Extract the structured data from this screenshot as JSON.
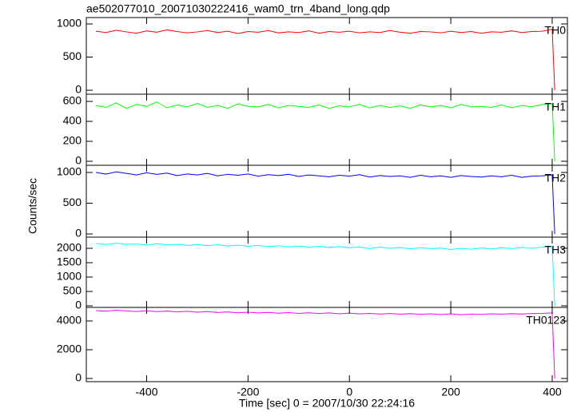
{
  "title": "ae502077010_20071030222416_wam0_trn_4band_long.qdp",
  "y_label": "Counts/sec",
  "x_label": "Time [sec] 0 = 2007/10/30 22:24:16",
  "chart_data": [
    {
      "type": "line",
      "xlim": [
        -519,
        430
      ],
      "ylim": [
        -60,
        1096
      ],
      "xticks": [
        -400,
        -200,
        0,
        200,
        400
      ],
      "yticks": [
        0,
        500,
        1000
      ],
      "x": [
        -500,
        -480,
        -460,
        -440,
        -420,
        -400,
        -380,
        -360,
        -340,
        -320,
        -300,
        -280,
        -260,
        -240,
        -220,
        -200,
        -180,
        -160,
        -140,
        -120,
        -100,
        -80,
        -60,
        -40,
        -20,
        0,
        20,
        40,
        60,
        80,
        100,
        120,
        140,
        160,
        180,
        200,
        220,
        240,
        260,
        280,
        300,
        320,
        340,
        360,
        380,
        400,
        405
      ],
      "series": [
        {
          "name": "TH0",
          "color": "#ff0000",
          "values": [
            890,
            870,
            905,
            880,
            860,
            895,
            875,
            910,
            885,
            865,
            880,
            900,
            870,
            890,
            855,
            885,
            875,
            900,
            865,
            880,
            870,
            895,
            860,
            885,
            875,
            890,
            865,
            880,
            870,
            900,
            875,
            860,
            885,
            880,
            865,
            890,
            870,
            885,
            860,
            880,
            875,
            895,
            870,
            885,
            890,
            920,
            0
          ]
        }
      ]
    },
    {
      "type": "line",
      "xlim": [
        -519,
        430
      ],
      "ylim": [
        -40,
        672
      ],
      "xticks": [
        -400,
        -200,
        0,
        200,
        400
      ],
      "yticks": [
        0,
        200,
        400,
        600
      ],
      "x": [
        -500,
        -480,
        -460,
        -440,
        -420,
        -400,
        -380,
        -360,
        -340,
        -320,
        -300,
        -280,
        -260,
        -240,
        -220,
        -200,
        -180,
        -160,
        -140,
        -120,
        -100,
        -80,
        -60,
        -40,
        -20,
        0,
        20,
        40,
        60,
        80,
        100,
        120,
        140,
        160,
        180,
        200,
        220,
        240,
        260,
        280,
        300,
        320,
        340,
        360,
        380,
        400,
        405
      ],
      "series": [
        {
          "name": "TH1",
          "color": "#00ff00",
          "values": [
            560,
            540,
            585,
            530,
            570,
            550,
            595,
            535,
            565,
            545,
            580,
            540,
            560,
            530,
            575,
            550,
            545,
            570,
            535,
            560,
            550,
            540,
            565,
            530,
            555,
            545,
            570,
            535,
            560,
            540,
            555,
            530,
            565,
            545,
            560,
            535,
            570,
            545,
            550,
            540,
            565,
            535,
            560,
            545,
            570,
            575,
            0
          ]
        }
      ]
    },
    {
      "type": "line",
      "xlim": [
        -519,
        430
      ],
      "ylim": [
        -52,
        1117
      ],
      "xticks": [
        -400,
        -200,
        0,
        200,
        400
      ],
      "yticks": [
        0,
        500,
        1000
      ],
      "x": [
        -500,
        -480,
        -460,
        -440,
        -420,
        -400,
        -380,
        -360,
        -340,
        -320,
        -300,
        -280,
        -260,
        -240,
        -220,
        -200,
        -180,
        -160,
        -140,
        -120,
        -100,
        -80,
        -60,
        -40,
        -20,
        0,
        20,
        40,
        60,
        80,
        100,
        120,
        140,
        160,
        180,
        200,
        220,
        240,
        260,
        280,
        300,
        320,
        340,
        360,
        380,
        400,
        405
      ],
      "series": [
        {
          "name": "TH2",
          "color": "#0000ff",
          "values": [
            1000,
            975,
            1010,
            985,
            960,
            995,
            970,
            990,
            950,
            975,
            960,
            985,
            945,
            970,
            955,
            975,
            940,
            965,
            950,
            970,
            935,
            960,
            945,
            930,
            955,
            940,
            965,
            925,
            950,
            935,
            945,
            920,
            955,
            930,
            945,
            920,
            950,
            935,
            925,
            945,
            930,
            955,
            920,
            940,
            945,
            960,
            0
          ]
        }
      ]
    },
    {
      "type": "line",
      "xlim": [
        -519,
        430
      ],
      "ylim": [
        -56,
        2389
      ],
      "xticks": [
        -400,
        -200,
        0,
        200,
        400
      ],
      "yticks": [
        0,
        500,
        1000,
        1500,
        2000
      ],
      "x": [
        -500,
        -480,
        -460,
        -440,
        -420,
        -400,
        -380,
        -360,
        -340,
        -320,
        -300,
        -280,
        -260,
        -240,
        -220,
        -200,
        -180,
        -160,
        -140,
        -120,
        -100,
        -80,
        -60,
        -40,
        -20,
        0,
        20,
        40,
        60,
        80,
        100,
        120,
        140,
        160,
        180,
        200,
        220,
        240,
        260,
        280,
        300,
        320,
        340,
        360,
        380,
        400,
        405
      ],
      "series": [
        {
          "name": "TH3",
          "color": "#00ffff",
          "values": [
            2170,
            2130,
            2180,
            2140,
            2150,
            2110,
            2160,
            2120,
            2140,
            2100,
            2130,
            2090,
            2120,
            2080,
            2110,
            2070,
            2100,
            2060,
            2090,
            2050,
            2080,
            2040,
            2070,
            2030,
            2060,
            2020,
            2050,
            1990,
            2040,
            2000,
            2030,
            1980,
            2020,
            1990,
            2010,
            1960,
            2000,
            1970,
            2010,
            1980,
            2020,
            1990,
            2030,
            2000,
            2040,
            2060,
            0
          ]
        }
      ]
    },
    {
      "type": "line",
      "xlim": [
        -519,
        430
      ],
      "ylim": [
        -222,
        4944
      ],
      "xticks": [
        -400,
        -200,
        0,
        200,
        400
      ],
      "yticks": [
        0,
        2000,
        4000
      ],
      "x": [
        -500,
        -480,
        -460,
        -440,
        -420,
        -400,
        -380,
        -360,
        -340,
        -320,
        -300,
        -280,
        -260,
        -240,
        -220,
        -200,
        -180,
        -160,
        -140,
        -120,
        -100,
        -80,
        -60,
        -40,
        -20,
        0,
        20,
        40,
        60,
        80,
        100,
        120,
        140,
        160,
        180,
        200,
        220,
        240,
        260,
        280,
        300,
        320,
        340,
        360,
        380,
        400,
        405
      ],
      "series": [
        {
          "name": "TH0123",
          "color": "#ff00ff",
          "values": [
            4720,
            4680,
            4750,
            4700,
            4660,
            4710,
            4650,
            4690,
            4630,
            4670,
            4610,
            4650,
            4590,
            4630,
            4570,
            4610,
            4560,
            4600,
            4540,
            4580,
            4530,
            4570,
            4520,
            4560,
            4500,
            4550,
            4490,
            4530,
            4480,
            4520,
            4470,
            4510,
            4460,
            4500,
            4450,
            4490,
            4440,
            4480,
            4460,
            4500,
            4470,
            4510,
            4480,
            4520,
            4530,
            4560,
            0
          ]
        }
      ]
    }
  ]
}
